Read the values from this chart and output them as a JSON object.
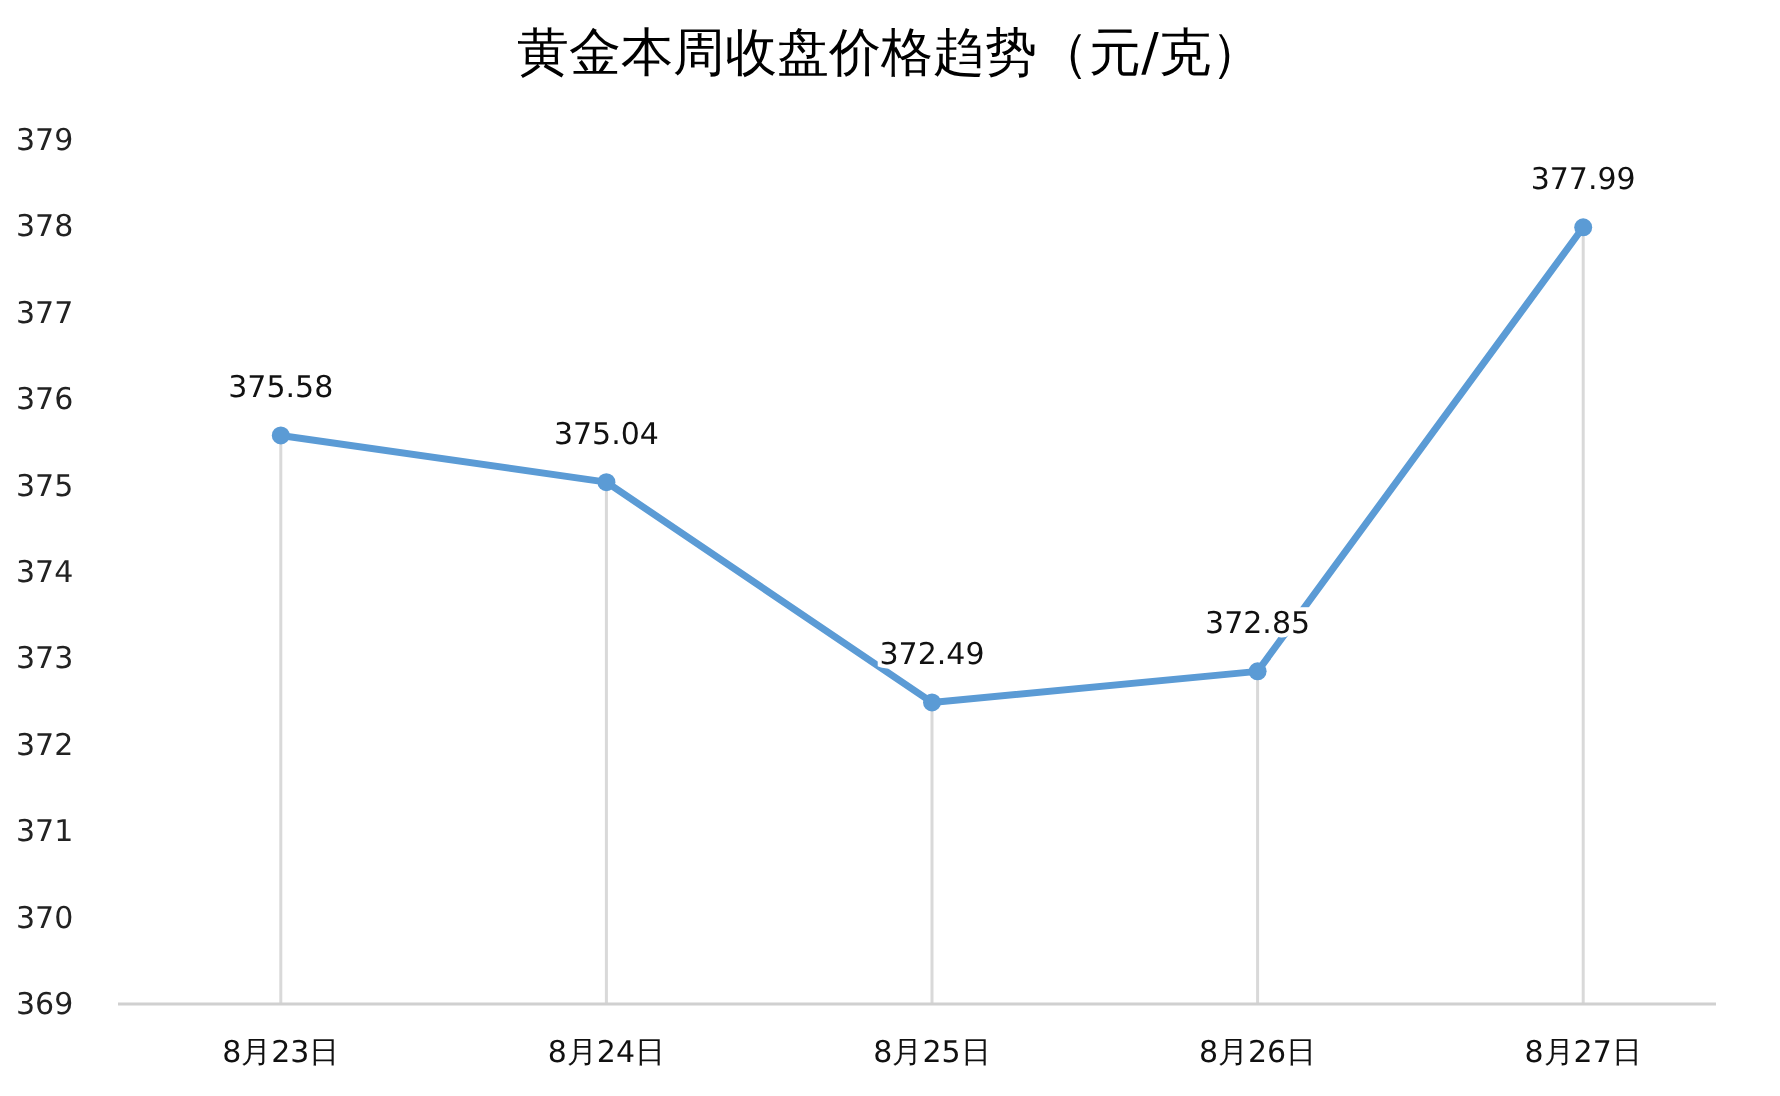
{
  "chart_data": {
    "type": "line",
    "title": "黄金本周收盘价格趋势（元/克）",
    "categories": [
      "8月23日",
      "8月24日",
      "8月25日",
      "8月26日",
      "8月27日"
    ],
    "series": [
      {
        "color": "#5b9bd5",
        "values": [
          375.58,
          375.04,
          372.49,
          372.85,
          377.99
        ]
      }
    ],
    "ylim": [
      369,
      379
    ],
    "yticks": [
      369,
      370,
      371,
      372,
      373,
      374,
      375,
      376,
      377,
      378,
      379
    ],
    "grid": "x",
    "marker": "circle",
    "line_style": "solid",
    "data_labels": true
  }
}
